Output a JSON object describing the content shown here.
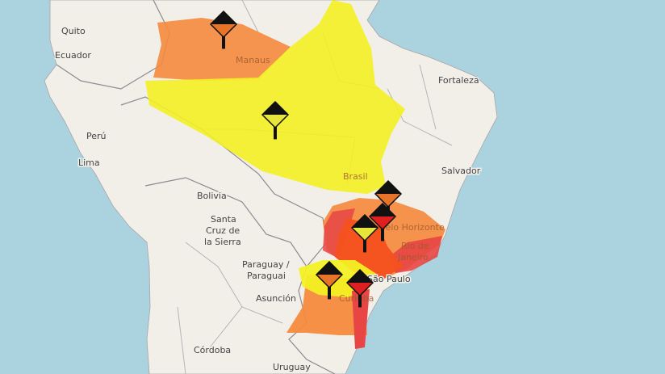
{
  "map": {
    "colors": {
      "ocean": "#aad3df",
      "land": "#f2efe9",
      "alert_yellow": "#f3f024",
      "alert_orange": "#f58a3e",
      "alert_red_orange": "#f4511e",
      "alert_red": "#e5383b"
    },
    "labels": {
      "quito": "Quito",
      "ecuador": "Ecuador",
      "manaus": "Manaus",
      "fortaleza": "Fortaleza",
      "peru": "Perú",
      "lima": "Lima",
      "brasil": "Brasil",
      "salvador": "Salvador",
      "bolivia": "Bolivia",
      "santa_cruz_1": "Santa",
      "santa_cruz_2": "Cruz de",
      "santa_cruz_3": "la Sierra",
      "paraguay_1": "Paraguay /",
      "paraguay_2": "Paraguai",
      "asuncion": "Asunción",
      "belo_horizonte": "Belo Horizonte",
      "rio_1": "Rio de",
      "rio_2": "Janeiro",
      "sao_paulo": "São Paulo",
      "curitiba": "Curitiba",
      "cordoba": "Córdoba",
      "uruguay": "Uruguay"
    },
    "alert_markers": [
      {
        "icon": "storm-warning-icon",
        "level": "orange"
      },
      {
        "icon": "storm-warning-icon",
        "level": "yellow"
      },
      {
        "icon": "storm-warning-icon",
        "level": "orange"
      },
      {
        "icon": "storm-warning-icon",
        "level": "red"
      },
      {
        "icon": "storm-warning-icon",
        "level": "yellow"
      },
      {
        "icon": "storm-warning-icon",
        "level": "orange"
      },
      {
        "icon": "storm-warning-icon",
        "level": "red"
      }
    ]
  }
}
